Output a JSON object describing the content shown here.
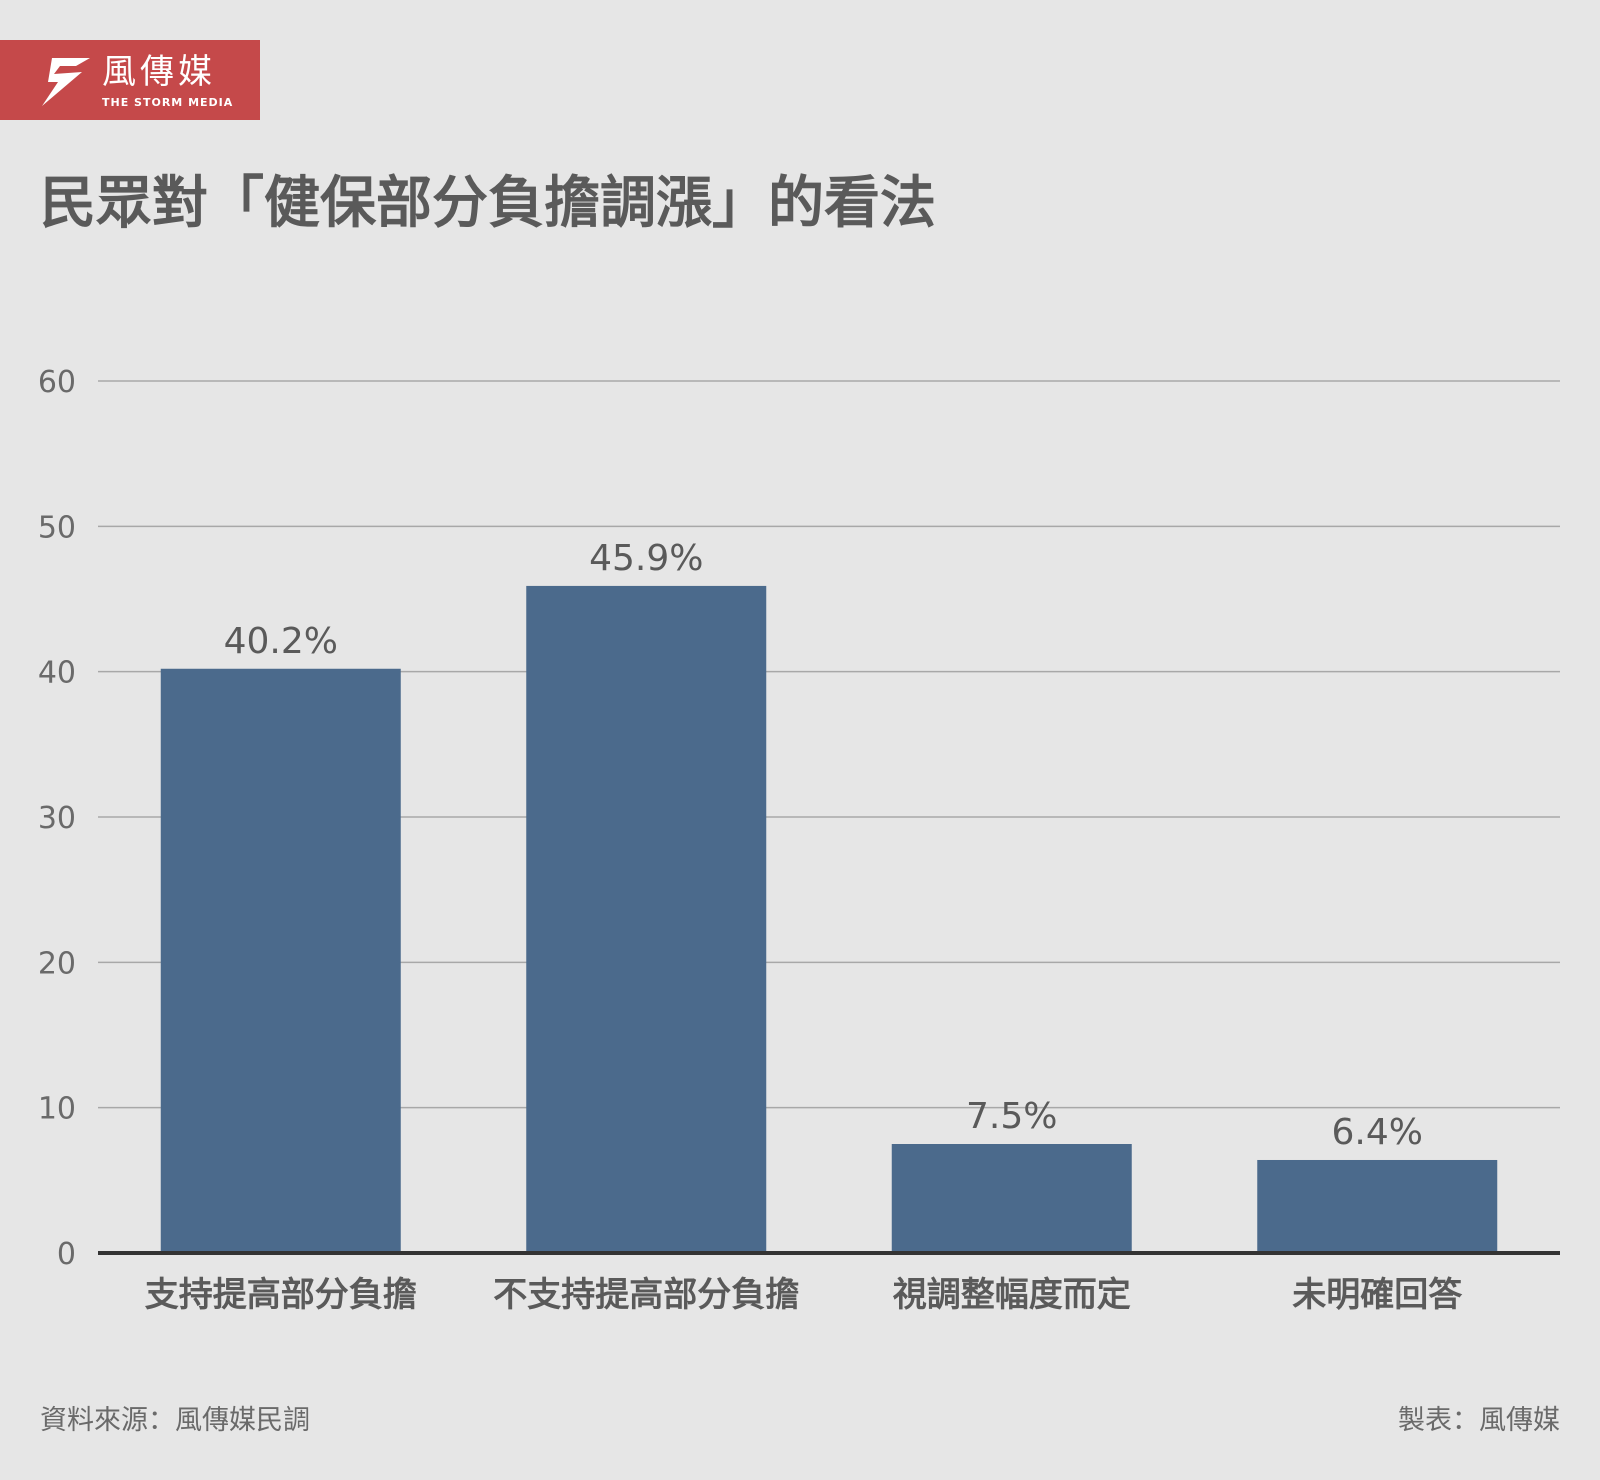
{
  "brand": {
    "name_cn": "風傳媒",
    "name_en": "THE STORM MEDIA",
    "color": "#c5494a"
  },
  "title": "民眾對「健保部分負擔調漲」的看法",
  "chart_data": {
    "type": "bar",
    "categories": [
      "支持提高部分負擔",
      "不支持提高部分負擔",
      "視調整幅度而定",
      "未明確回答"
    ],
    "values": [
      40.2,
      45.9,
      7.5,
      6.4
    ],
    "value_labels": [
      "40.2%",
      "45.9%",
      "7.5%",
      "6.4%"
    ],
    "yticks": [
      0,
      10,
      20,
      30,
      40,
      50,
      60
    ],
    "ylim": [
      0,
      60
    ],
    "title": "",
    "xlabel": "",
    "ylabel": "",
    "grid": true,
    "bar_color": "#4b6a8c"
  },
  "footer": {
    "source": "資料來源：風傳媒民調",
    "credit": "製表：風傳媒"
  }
}
